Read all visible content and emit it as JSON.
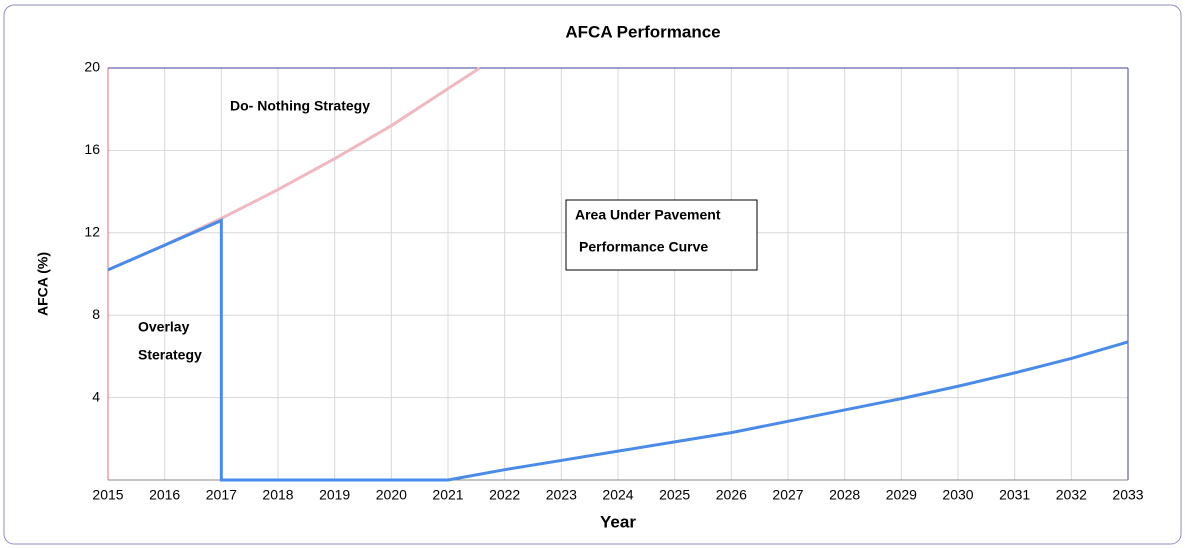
{
  "chart_data": {
    "type": "line",
    "title": "AFCA Performance",
    "x_label": "Year",
    "y_label": "AFCA (%)",
    "xlim": [
      2015,
      2033
    ],
    "xticks": [
      2015,
      2016,
      2017,
      2018,
      2019,
      2020,
      2021,
      2022,
      2023,
      2024,
      2025,
      2026,
      2027,
      2028,
      2029,
      2030,
      2031,
      2032,
      2033
    ],
    "ylim": [
      0,
      20
    ],
    "yticks": [
      4,
      8,
      12,
      16,
      20
    ],
    "grid": true,
    "series": [
      {
        "color": "#f0b8c0",
        "x": [
          2015,
          2016,
          2017,
          2018,
          2019,
          2020,
          2021,
          2021.56
        ],
        "values": [
          10.2,
          11.4,
          12.7,
          14.1,
          15.6,
          17.2,
          19.0,
          20
        ]
      },
      {
        "color": "#4a8be8",
        "x": [
          2015,
          2017,
          2017,
          2018,
          2019,
          2020,
          2021,
          2022,
          2023,
          2024,
          2025,
          2026,
          2027,
          2028,
          2029,
          2030,
          2031,
          2032,
          2033
        ],
        "values": [
          10.2,
          12.6,
          0,
          0,
          0,
          0,
          0,
          0.5,
          0.95,
          1.4,
          1.85,
          2.3,
          2.85,
          3.4,
          3.95,
          4.55,
          5.2,
          5.9,
          6.7
        ]
      }
    ],
    "annotations": [
      "Do- Nothing Strategy",
      "Overlay",
      "Sterategy"
    ],
    "box_text": [
      "Area Under Pavement",
      "Performance Curve"
    ]
  }
}
